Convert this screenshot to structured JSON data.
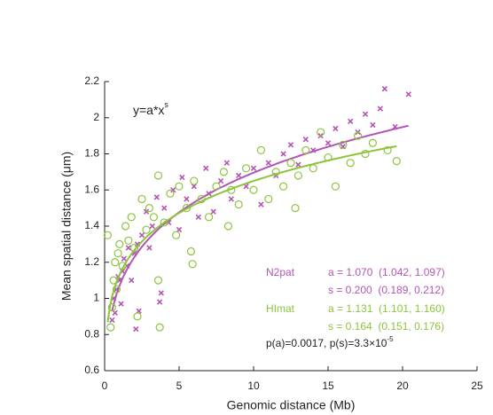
{
  "chart_data": {
    "type": "scatter",
    "xlabel": "Genomic distance (Mb)",
    "ylabel": "Mean spatial distance (μm)",
    "xlim": [
      0,
      25
    ],
    "ylim": [
      0.6,
      2.2
    ],
    "xticks": [
      0,
      5,
      10,
      15,
      20,
      25
    ],
    "yticks": [
      0.6,
      0.8,
      1,
      1.2,
      1.4,
      1.6,
      1.8,
      2,
      2.2
    ],
    "equation": {
      "base": "y=a*x",
      "exponent": "s"
    },
    "pvalues": {
      "base": "p(a)=0.0017, p(s)=3.3×10",
      "exponent": "-5"
    },
    "series": [
      {
        "name": "N2pat",
        "color": "#b455b6",
        "marker": "x",
        "fit": {
          "a": {
            "value": 1.07,
            "label": "a = 1.070  (1.042, 1.097)"
          },
          "s": {
            "value": 0.2,
            "label": "s = 0.200  (0.189, 0.212)"
          }
        },
        "x": [
          0.5,
          0.6,
          0.7,
          0.8,
          0.9,
          1.0,
          1.1,
          1.2,
          1.3,
          1.5,
          1.6,
          1.8,
          2.0,
          2.2,
          2.3,
          2.5,
          2.8,
          3.0,
          3.2,
          3.5,
          3.7,
          3.8,
          4.0,
          4.3,
          4.6,
          5.0,
          5.2,
          5.5,
          6.0,
          6.3,
          6.8,
          7.0,
          7.3,
          7.8,
          8.2,
          8.5,
          9.0,
          9.5,
          10.0,
          10.5,
          11.0,
          11.5,
          12.0,
          12.5,
          13.0,
          13.5,
          14.0,
          14.5,
          15.0,
          15.5,
          16.0,
          16.5,
          17.0,
          17.5,
          18.0,
          18.5,
          18.8,
          19.5,
          20.4,
          2.1
        ],
        "values": [
          0.88,
          1.0,
          0.92,
          1.05,
          1.12,
          1.1,
          0.97,
          1.15,
          1.22,
          1.18,
          1.28,
          1.1,
          1.25,
          1.3,
          0.93,
          1.35,
          1.48,
          1.28,
          1.4,
          1.56,
          0.98,
          1.03,
          1.5,
          1.42,
          1.6,
          1.38,
          1.67,
          1.55,
          1.62,
          1.45,
          1.72,
          1.58,
          1.48,
          1.65,
          1.75,
          1.55,
          1.68,
          1.62,
          1.72,
          1.52,
          1.75,
          1.68,
          1.8,
          1.85,
          1.74,
          1.88,
          1.82,
          1.9,
          1.86,
          1.94,
          1.84,
          1.98,
          1.92,
          2.02,
          1.96,
          2.05,
          2.16,
          1.95,
          2.13,
          0.83
        ]
      },
      {
        "name": "HImat",
        "color": "#8cc43c",
        "marker": "o",
        "fit": {
          "a": {
            "value": 1.131,
            "label": "a = 1.131  (1.101, 1.160)"
          },
          "s": {
            "value": 0.164,
            "label": "s = 0.164  (0.151, 0.176)"
          }
        },
        "x": [
          0.2,
          0.4,
          0.5,
          0.6,
          0.7,
          0.8,
          0.9,
          1.0,
          1.2,
          1.4,
          1.6,
          1.8,
          2.0,
          2.2,
          2.5,
          2.8,
          3.0,
          3.3,
          3.6,
          3.7,
          3.6,
          4.0,
          4.4,
          4.8,
          5.0,
          5.5,
          5.8,
          5.9,
          6.0,
          6.5,
          7.0,
          7.5,
          8.0,
          8.3,
          8.5,
          9.0,
          9.5,
          10.0,
          10.5,
          11.0,
          11.5,
          12.0,
          12.5,
          12.8,
          13.0,
          13.5,
          14.0,
          14.5,
          15.0,
          15.5,
          16.0,
          16.5,
          17.0,
          17.5,
          18.0,
          19.0,
          19.6
        ],
        "values": [
          1.35,
          0.84,
          0.95,
          1.1,
          1.2,
          1.05,
          1.25,
          1.3,
          1.18,
          1.4,
          1.32,
          1.45,
          1.28,
          0.9,
          1.55,
          1.38,
          1.5,
          1.45,
          1.68,
          0.84,
          1.1,
          1.42,
          1.58,
          1.35,
          1.62,
          1.5,
          1.26,
          1.19,
          1.65,
          1.55,
          1.45,
          1.62,
          1.7,
          1.4,
          1.6,
          1.52,
          1.72,
          1.6,
          1.82,
          1.55,
          1.7,
          1.62,
          1.75,
          1.5,
          1.68,
          1.82,
          1.72,
          1.92,
          1.78,
          1.62,
          1.85,
          1.75,
          1.9,
          1.8,
          1.86,
          1.82,
          1.76
        ]
      }
    ]
  }
}
